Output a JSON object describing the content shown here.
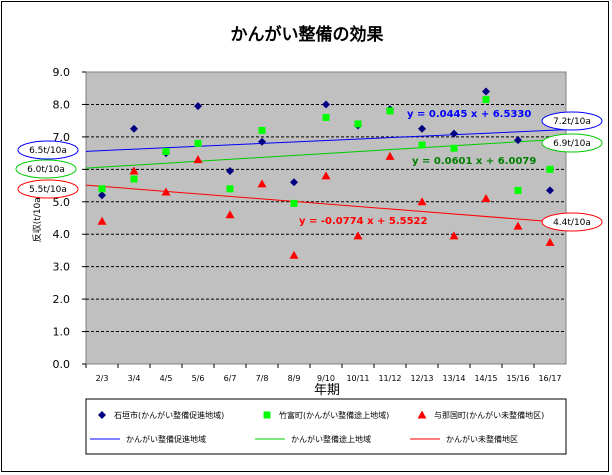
{
  "chart_data": {
    "type": "scatter",
    "title": "かんがい整備の効果",
    "xlabel": "年期",
    "ylabel": "反収(t/10a)",
    "ylim": [
      0,
      9
    ],
    "yticks": [
      "0.0",
      "1.0",
      "2.0",
      "3.0",
      "4.0",
      "5.0",
      "6.0",
      "7.0",
      "8.0",
      "9.0"
    ],
    "categories": [
      "2/3",
      "3/4",
      "4/5",
      "5/6",
      "6/7",
      "7/8",
      "8/9",
      "9/10",
      "10/11",
      "11/12",
      "12/13",
      "13/14",
      "14/15",
      "15/16",
      "16/17"
    ],
    "grid": true,
    "plot_background": "#c0c0c0",
    "legend_position": "bottom",
    "series": [
      {
        "name": "石垣市(かんがい整備促進地域)",
        "marker": "diamond",
        "color": "#000080",
        "values": [
          5.2,
          7.25,
          6.5,
          7.95,
          5.95,
          6.85,
          5.6,
          8.0,
          7.35,
          7.85,
          7.25,
          7.1,
          8.4,
          6.9,
          5.35
        ]
      },
      {
        "name": "竹富町(かんがい整備途上地域)",
        "marker": "square",
        "color": "#00ff00",
        "values": [
          5.4,
          5.7,
          6.55,
          6.8,
          5.4,
          7.2,
          4.95,
          7.6,
          7.4,
          7.8,
          6.75,
          6.65,
          8.15,
          5.35,
          6.0
        ]
      },
      {
        "name": "与那国町(かんがい未整備地区)",
        "marker": "triangle",
        "color": "#ff0000",
        "values": [
          4.4,
          5.95,
          5.3,
          6.3,
          4.6,
          5.55,
          3.35,
          5.8,
          3.95,
          6.4,
          5.0,
          3.95,
          5.1,
          4.25,
          3.75
        ]
      }
    ],
    "trendlines": [
      {
        "name": "かんがい整備促進地域",
        "color": "#0000ff",
        "slope": 0.0445,
        "intercept": 6.533,
        "equation": "y = 0.0445 x + 6.5330",
        "start_label": "6.5t/10a",
        "end_label": "7.2t/10a",
        "callout_color": "#0000ff"
      },
      {
        "name": "かんがい整備途上地域",
        "color": "#00cc00",
        "slope": 0.0601,
        "intercept": 6.0079,
        "equation": "y = 0.0601 x + 6.0079",
        "start_label": "6.0t/10a",
        "end_label": "6.9t/10a",
        "callout_color": "#00cc00"
      },
      {
        "name": "かんがい未整備地区",
        "color": "#ff0000",
        "slope": -0.0774,
        "intercept": 5.5522,
        "equation": "y = -0.0774 x + 5.5522",
        "start_label": "5.5t/10a",
        "end_label": "4.4t/10a",
        "callout_color": "#ff0000"
      }
    ]
  }
}
